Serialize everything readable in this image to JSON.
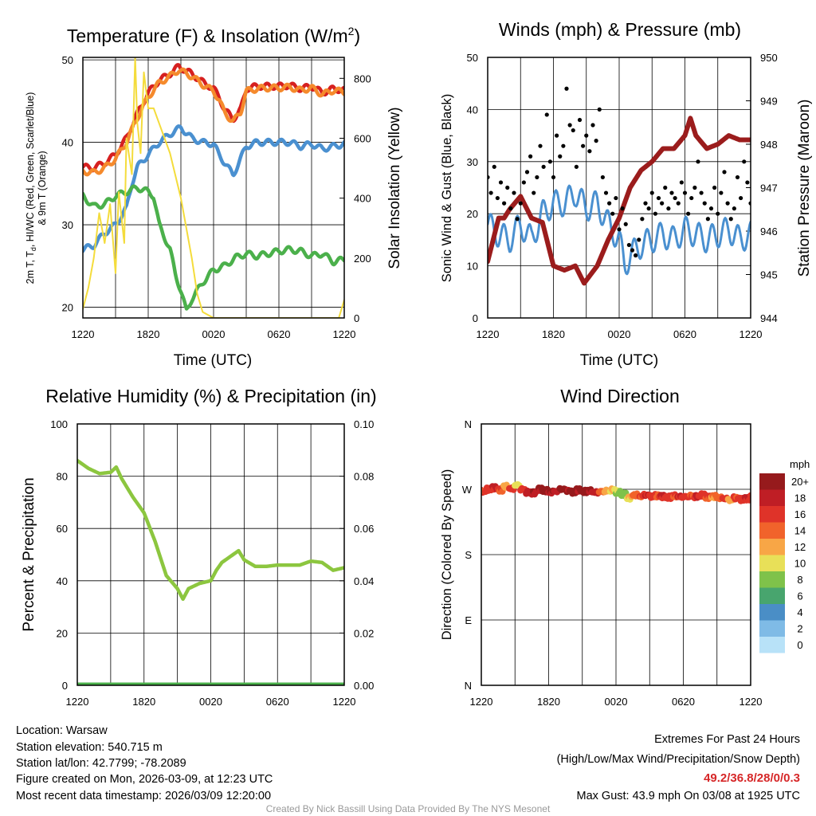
{
  "chart_data": [
    {
      "type": "line",
      "title": "Temperature (F) & Insolation (W/m",
      "title_sup": "2",
      "title_end": ")",
      "xlabel": "Time (UTC)",
      "ylabel_line1": "2m T, T",
      "ylabel_sub": "d",
      "ylabel_line1_end": ", HI/WC (Red, Green, Scarlet/Blue)",
      "ylabel_line2": "& 9m T (Orange)",
      "ylabel_right": "Solar Insolation (Yellow)",
      "xticks": [
        "1220",
        "1820",
        "0020",
        "0620",
        "1220"
      ],
      "xlim_hours": [
        0,
        24
      ],
      "ylim": [
        18.7,
        50.3
      ],
      "yticks": [
        20,
        30,
        40,
        50
      ],
      "ylim_right": [
        0,
        870
      ],
      "yticks_right": [
        0,
        200,
        400,
        600,
        800
      ],
      "series": [
        {
          "name": "2m T",
          "color": "#d62020",
          "axis": "left",
          "x": [
            0,
            1,
            2,
            3,
            4,
            5,
            6,
            7,
            8,
            8.8,
            10,
            11,
            12,
            12.5,
            13,
            13.8,
            14.5,
            15,
            16,
            17,
            18,
            19,
            20,
            21,
            22,
            23,
            24
          ],
          "y": [
            37,
            36.9,
            37.5,
            38.5,
            40.5,
            43.5,
            46,
            47.5,
            48.3,
            49.2,
            48.3,
            47.3,
            46.5,
            45.5,
            44,
            42.8,
            44,
            46.5,
            46.8,
            46.8,
            46.8,
            46.9,
            46.5,
            46.8,
            46,
            46.5,
            46.3
          ]
        },
        {
          "name": "9m T",
          "color": "#f58a2c",
          "axis": "left",
          "x": [
            0,
            1,
            2,
            3,
            4,
            5,
            6,
            7,
            8,
            8.8,
            10,
            11,
            12,
            12.5,
            13,
            13.8,
            14.5,
            15,
            16,
            17,
            18,
            19,
            20,
            21,
            22,
            23,
            24
          ],
          "y": [
            36.5,
            36.3,
            36.9,
            38,
            40,
            43,
            45.5,
            47.2,
            48,
            48.8,
            48,
            47,
            46.2,
            45.2,
            43.6,
            42.5,
            43.7,
            46.2,
            46.5,
            46.6,
            46.6,
            46.7,
            46.3,
            46.6,
            45.8,
            46.3,
            46.1
          ]
        },
        {
          "name": "HI/WC",
          "color": "#4a90d0",
          "axis": "left",
          "x": [
            0,
            1,
            2,
            3,
            4,
            4.5,
            5,
            6,
            7,
            8,
            9,
            10,
            11,
            12,
            12.5,
            13.3,
            13.8,
            14.3,
            15,
            16,
            18,
            19,
            20,
            21,
            22,
            23,
            24
          ],
          "y": [
            27,
            27.5,
            29,
            30,
            32,
            35,
            37,
            38.5,
            40,
            41,
            41.8,
            40.5,
            40,
            39.8,
            38.5,
            37,
            36,
            37.5,
            39.5,
            40,
            40,
            40,
            39.5,
            39.8,
            39.2,
            39.5,
            39.8
          ]
        },
        {
          "name": "Td",
          "color": "#4bb04b",
          "axis": "left",
          "x": [
            0,
            1,
            2,
            3,
            4,
            5,
            6,
            6.5,
            7,
            8,
            8.5,
            9,
            9.5,
            10,
            11,
            12,
            13,
            14,
            15,
            16,
            17,
            18,
            19,
            20,
            21,
            22,
            23,
            24
          ],
          "y": [
            33.5,
            32.2,
            32.5,
            33.5,
            34,
            34.5,
            34,
            33.5,
            30,
            27,
            24,
            22,
            19.5,
            21,
            23,
            24.5,
            25,
            26,
            26.5,
            26.2,
            26.5,
            26.8,
            27,
            26.8,
            26.2,
            26.5,
            25.5,
            25.8
          ]
        },
        {
          "name": "Solar Insolation",
          "color": "#f4dc3c",
          "axis": "right",
          "x": [
            0,
            0.5,
            1,
            1.5,
            2,
            2.5,
            3,
            3.3,
            3.8,
            4,
            4.5,
            4.8,
            5,
            5.3,
            5.6,
            6,
            6.5,
            7,
            8,
            9,
            10,
            10.5,
            11,
            12,
            23.5,
            24
          ],
          "y": [
            30,
            100,
            200,
            350,
            250,
            380,
            150,
            420,
            250,
            600,
            480,
            870,
            650,
            550,
            820,
            700,
            700,
            650,
            550,
            400,
            200,
            80,
            20,
            0,
            0,
            60
          ]
        }
      ]
    },
    {
      "type": "line",
      "title": "Winds (mph) & Pressure (mb)",
      "xlabel": "Time (UTC)",
      "ylabel": "Sonic Wind & Gust (Blue, Black)",
      "ylabel_right": "Station Pressure (Maroon)",
      "xticks": [
        "1220",
        "1820",
        "0020",
        "0620",
        "1220"
      ],
      "xlim_hours": [
        0,
        24
      ],
      "ylim": [
        0,
        50
      ],
      "yticks": [
        0,
        10,
        20,
        30,
        40,
        50
      ],
      "ylim_right": [
        944,
        950
      ],
      "yticks_right": [
        944,
        945,
        946,
        947,
        948,
        949,
        950
      ],
      "series": [
        {
          "name": "Sonic Wind",
          "color": "#4a90d0",
          "axis": "left",
          "x": [
            0,
            1,
            2,
            3,
            4,
            5,
            6,
            7,
            8,
            9,
            10,
            11,
            12,
            12.5,
            13,
            14,
            15,
            16,
            17,
            18,
            19,
            20,
            21,
            22,
            23,
            24
          ],
          "y": [
            18,
            16,
            15,
            18,
            15,
            20,
            22,
            22,
            24,
            21,
            22,
            18,
            15,
            10,
            12,
            14,
            15,
            16,
            15,
            17,
            16,
            15,
            16,
            17,
            15,
            16
          ]
        },
        {
          "name": "Station Pressure",
          "color": "#9b1c1c",
          "axis": "right",
          "x": [
            0,
            0.5,
            1,
            1.5,
            2,
            3,
            4,
            5,
            5.5,
            6,
            7,
            8,
            8.8,
            10,
            11,
            12,
            13,
            14,
            15,
            16,
            17,
            18,
            18.5,
            19,
            20,
            21,
            22,
            23,
            24
          ],
          "y": [
            945.3,
            945.8,
            946.3,
            946.3,
            946.5,
            946.8,
            946.3,
            946.2,
            945.7,
            945.2,
            945.1,
            945.2,
            944.8,
            945.2,
            945.8,
            946.3,
            947,
            947.4,
            947.6,
            947.9,
            947.9,
            948.2,
            948.6,
            948.2,
            947.9,
            948,
            948.2,
            948.1,
            948.1
          ]
        },
        {
          "name": "Gust",
          "color": "#000000",
          "axis": "left",
          "marker": "dot",
          "x": [
            0,
            0.3,
            0.6,
            0.9,
            1.2,
            1.5,
            1.8,
            2.1,
            2.4,
            2.7,
            3,
            3.3,
            3.6,
            3.9,
            4.2,
            4.5,
            4.8,
            5.1,
            5.4,
            5.7,
            6,
            6.3,
            6.6,
            6.9,
            7.2,
            7.5,
            7.8,
            8.1,
            8.4,
            8.7,
            9,
            9.3,
            9.6,
            9.9,
            10.2,
            10.5,
            10.8,
            11.1,
            11.4,
            11.7,
            12,
            12.3,
            12.6,
            12.9,
            13.2,
            13.5,
            13.8,
            14.1,
            14.4,
            14.7,
            15,
            15.3,
            15.6,
            15.9,
            16.2,
            16.5,
            16.8,
            17.1,
            17.4,
            17.7,
            18,
            18.3,
            18.6,
            18.9,
            19.2,
            19.5,
            19.8,
            20.1,
            20.4,
            20.7,
            21,
            21.3,
            21.6,
            21.9,
            22.2,
            22.5,
            22.8,
            23.1,
            23.4,
            23.7,
            24
          ],
          "y": [
            27,
            24,
            29,
            23,
            26,
            22,
            25,
            21,
            24,
            19,
            22,
            26,
            28,
            31,
            24,
            27,
            33,
            29,
            39,
            30,
            27,
            35,
            31,
            33,
            44,
            37,
            36,
            29,
            38,
            33,
            35,
            32,
            37,
            34,
            40,
            27,
            24,
            22,
            20,
            23,
            17,
            21,
            18,
            14,
            13,
            12,
            15,
            19,
            22,
            21,
            24,
            20,
            23,
            22,
            25,
            21,
            24,
            23,
            22,
            26,
            24,
            20,
            23,
            25,
            30,
            24,
            22,
            19,
            21,
            25,
            20,
            24,
            28,
            22,
            19,
            21,
            27,
            23,
            30,
            26,
            22
          ]
        }
      ]
    },
    {
      "type": "line",
      "title": "Relative Humidity (%) & Precipitation (in)",
      "ylabel": "Percent & Precipitation",
      "xticks": [
        "1220",
        "1820",
        "0020",
        "0620",
        "1220"
      ],
      "xlim_hours": [
        0,
        24
      ],
      "ylim": [
        0,
        100
      ],
      "yticks": [
        0,
        20,
        40,
        60,
        80,
        100
      ],
      "ylim_right": [
        0,
        0.1
      ],
      "yticks_right": [
        "0.00",
        "0.02",
        "0.04",
        "0.06",
        "0.08",
        "0.10"
      ],
      "series": [
        {
          "name": "Relative Humidity",
          "color": "#8cc63f",
          "axis": "left",
          "x": [
            0,
            1,
            2,
            3,
            3.5,
            4,
            5,
            6,
            7,
            8,
            9,
            9.5,
            10,
            11,
            12,
            12.5,
            13,
            14,
            14.5,
            15,
            16,
            17,
            18,
            19,
            20,
            21,
            22,
            23,
            24
          ],
          "y": [
            86,
            83,
            81,
            81.5,
            83.5,
            79,
            72,
            66,
            55,
            42,
            37,
            33,
            37,
            39,
            40,
            44,
            47,
            50,
            51.5,
            48,
            45.5,
            45.5,
            46,
            46,
            46,
            47.5,
            47,
            44,
            45
          ]
        },
        {
          "name": "Precipitation",
          "color": "#4bb04b",
          "axis": "right",
          "x": [
            0,
            24
          ],
          "y": [
            0,
            0
          ]
        }
      ]
    },
    {
      "type": "scatter",
      "title": "Wind Direction",
      "ylabel": "Direction (Colored By Speed)",
      "xticks": [
        "1220",
        "1820",
        "0020",
        "0620",
        "1220"
      ],
      "xlim_hours": [
        0,
        24
      ],
      "ylim_degrees": [
        0,
        360
      ],
      "yticks": [
        "N",
        "E",
        "S",
        "W",
        "N"
      ],
      "legend": {
        "title": "mph",
        "labels": [
          "20+",
          "18",
          "16",
          "14",
          "12",
          "10",
          "8",
          "6",
          "4",
          "2",
          "0"
        ],
        "colors": [
          "#961a1c",
          "#bf1e25",
          "#df3329",
          "#f1632b",
          "#f8a646",
          "#e8e058",
          "#7fc24a",
          "#48a56e",
          "#4a8ec6",
          "#7fbbe6",
          "#b8e2f8"
        ]
      },
      "x": [
        0,
        0.5,
        1,
        1.5,
        2,
        2.5,
        3,
        3.5,
        4,
        4.5,
        5,
        5.5,
        6,
        6.5,
        7,
        7.5,
        8,
        8.5,
        9,
        9.5,
        10,
        10.5,
        11,
        11.5,
        12,
        12.5,
        13,
        13.5,
        14,
        14.5,
        15,
        15.5,
        16,
        16.5,
        17,
        17.5,
        18,
        18.5,
        19,
        19.5,
        20,
        20.5,
        21,
        21.5,
        22,
        22.5,
        23,
        23.5,
        24
      ],
      "direction_deg": [
        267,
        270,
        272,
        269,
        274,
        271,
        276,
        270,
        266,
        265,
        270,
        268,
        266,
        267,
        270,
        268,
        266,
        269,
        267,
        268,
        266,
        267,
        268,
        269,
        266,
        263,
        258,
        262,
        260,
        262,
        260,
        261,
        260,
        259,
        261,
        260,
        260,
        261,
        260,
        262,
        259,
        260,
        258,
        257,
        255,
        258,
        256,
        257,
        260
      ],
      "speed_mph": [
        16,
        17,
        18,
        16,
        13,
        17,
        11,
        17,
        19,
        20,
        20,
        21,
        20,
        19,
        21,
        20,
        21,
        20,
        22,
        20,
        19,
        15,
        13,
        12,
        10,
        9,
        12,
        15,
        16,
        18,
        17,
        16,
        18,
        17,
        16,
        18,
        17,
        16,
        18,
        17,
        16,
        14,
        15,
        17,
        13,
        16,
        17,
        18,
        16
      ]
    }
  ],
  "info": {
    "location": "Location: Warsaw",
    "elevation": "Station elevation: 540.715 m",
    "latlon": "Station lat/lon: 42.7799; -78.2089",
    "created": "Figure created on Mon, 2026-03-09, at 12:23 UTC",
    "recent": "Most recent data timestamp: 2026/03/09 12:20:00"
  },
  "extremes": {
    "title": "Extremes For Past 24 Hours",
    "subtitle": "(High/Low/Max Wind/Precipitation/Snow Depth)",
    "values": "49.2/36.8/28/0/0.3",
    "gust": "Max Gust: 43.9 mph On 03/08 at 1925 UTC"
  },
  "credit": "Created By Nick Bassill Using Data Provided By The NYS Mesonet"
}
